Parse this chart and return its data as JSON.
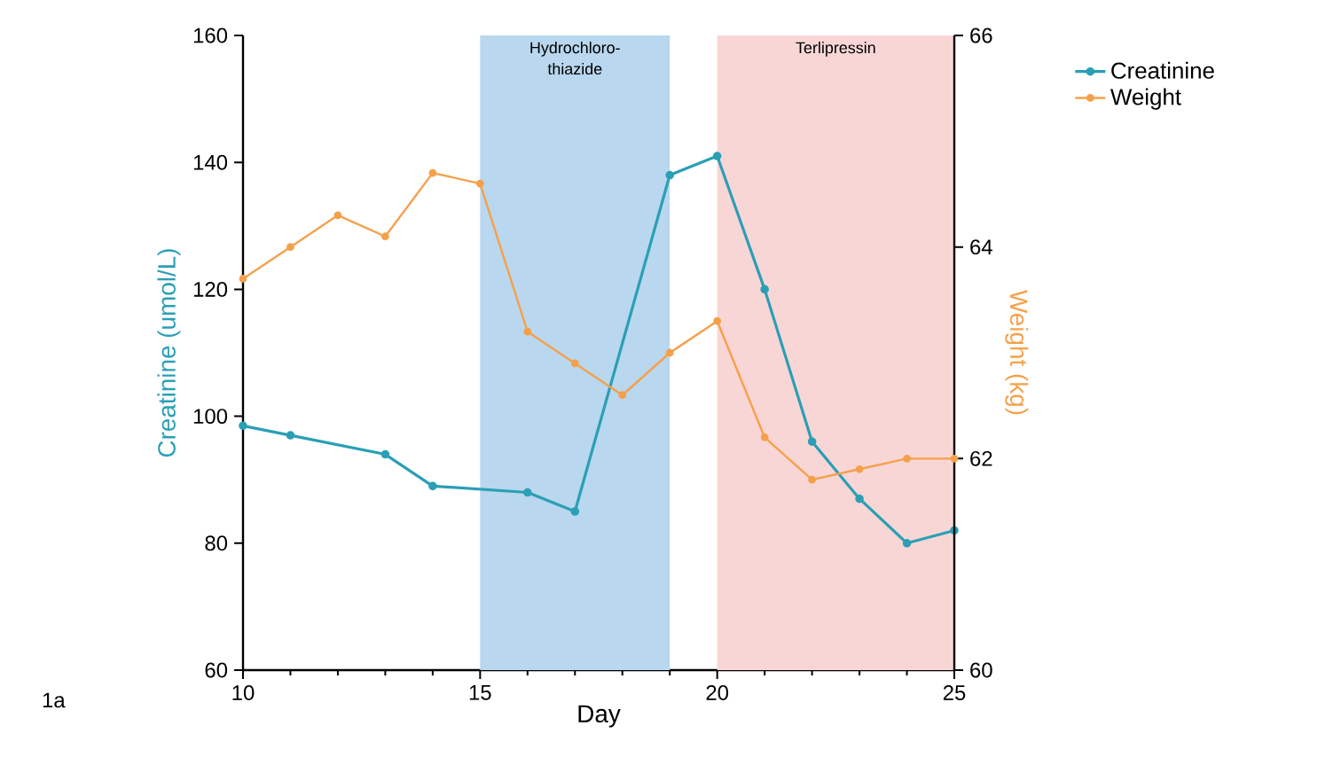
{
  "chart_data": {
    "type": "line",
    "xlabel": "Day",
    "ylabel": "Creatinine (umol/L)",
    "y2label": "Weight (kg)",
    "xlim": [
      10,
      25
    ],
    "xticks": [
      10,
      15,
      20,
      25
    ],
    "ylim": [
      60,
      160
    ],
    "yticks": [
      60,
      80,
      100,
      120,
      140,
      160
    ],
    "y2lim": [
      60,
      66
    ],
    "y2ticks": [
      60,
      62,
      64,
      66
    ],
    "series": [
      {
        "name": "Creatinine",
        "color": "#2a9fb5",
        "x": [
          10,
          11,
          13,
          14,
          16,
          17,
          19,
          20,
          21,
          22,
          23,
          24,
          25
        ],
        "values": [
          98.5,
          97,
          94,
          89,
          88,
          85,
          138,
          141,
          120,
          96,
          87,
          80,
          82
        ]
      },
      {
        "name": "Weight",
        "color": "#f5a04a",
        "axis": "y2",
        "x": [
          10,
          11,
          12,
          13,
          14,
          15,
          16,
          17,
          18,
          19,
          20,
          21,
          22,
          23,
          24,
          25
        ],
        "values": [
          63.7,
          64.0,
          64.3,
          64.1,
          64.7,
          64.6,
          63.2,
          62.9,
          62.6,
          63.0,
          63.3,
          62.2,
          61.8,
          61.9,
          62.0,
          62.0
        ]
      }
    ],
    "bands": [
      {
        "axis": "x",
        "from": 15,
        "to": 19,
        "label": "Hydrochloro-thiazide",
        "color": "#b9d7ee"
      },
      {
        "axis": "x",
        "from": 20,
        "to": 25,
        "label": "Terlipressin",
        "color": "#f9d6d6"
      }
    ],
    "annotations": [
      "1a"
    ],
    "marker": "circle",
    "line_style": "solid",
    "legend": "top right",
    "grid": false
  }
}
